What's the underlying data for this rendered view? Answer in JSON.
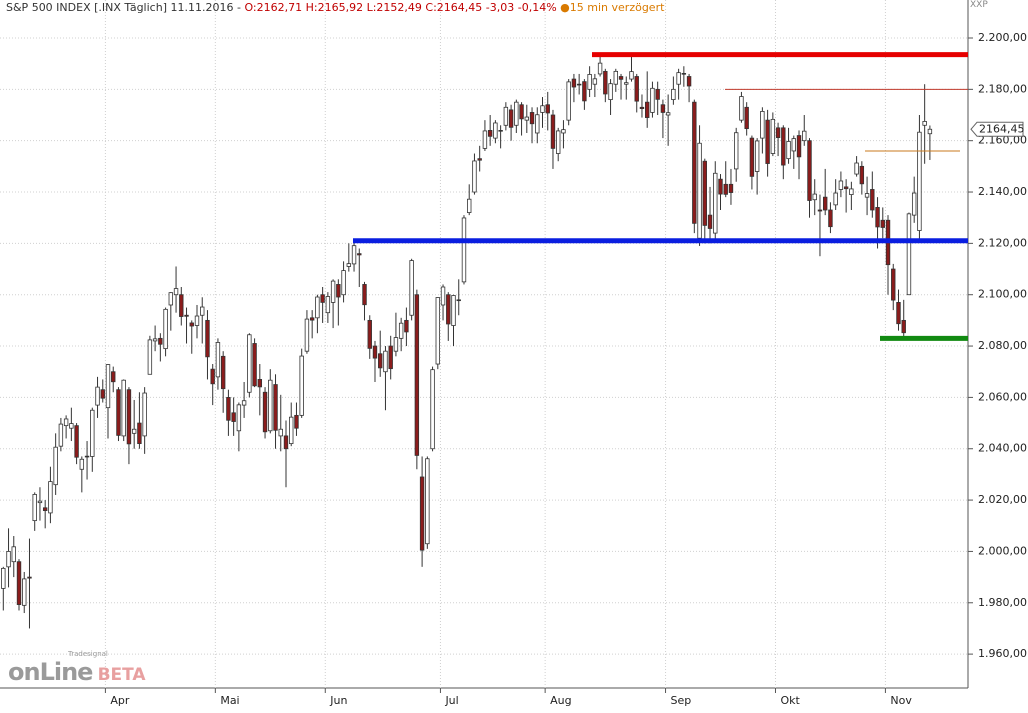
{
  "header": {
    "name": "S&P 500 INDEX [.INX Täglich] 11.11.2016 -",
    "open": "O:2162,71",
    "high": "H:2165,92",
    "low": "L:2152,49",
    "close": "C:2164,45",
    "change": "-3,03",
    "change_pct": "-0,14%",
    "delay": "15 min verzögert",
    "corner": "XXP"
  },
  "logo": {
    "brand": "onLine",
    "tag": "BETA",
    "small": "Tradesignal"
  },
  "chart_data": {
    "type": "candlestick",
    "categories": [
      null,
      "Apr",
      "Mai",
      "Jun",
      "Jul",
      "Aug",
      "Sep",
      "Okt",
      "Nov"
    ],
    "ohlc": [
      [
        [
          1985.6,
          1994,
          1977,
          1993.4
        ],
        [
          1994,
          2009,
          1986,
          2000
        ],
        [
          1996,
          2006,
          1990,
          2001.8
        ],
        [
          1996,
          1997,
          1977,
          1979.3
        ],
        [
          1979,
          1992,
          1976,
          1989.3
        ],
        [
          1990,
          2005,
          1970,
          1989.6
        ],
        [
          2012,
          2023,
          2008,
          2022.2
        ],
        [
          2019,
          2025,
          2012,
          2019.6
        ],
        [
          2017,
          2020,
          2009,
          2015.9
        ],
        [
          2015,
          2033,
          2011,
          2027.2
        ],
        [
          2026,
          2046,
          2022,
          2040.6
        ],
        [
          2041,
          2052,
          2039,
          2049.6
        ],
        [
          2049,
          2053,
          2044,
          2051.6
        ],
        [
          2048,
          2056,
          2043,
          2049.8
        ],
        [
          2049,
          2050,
          2034,
          2036.7
        ],
        [
          2032,
          2037,
          2023,
          2035.9
        ],
        [
          2037,
          2043,
          2028,
          2037.1
        ],
        [
          2037,
          2056,
          2031,
          2055
        ],
        [
          2057,
          2068,
          2052,
          2064
        ],
        [
          2063,
          2067,
          2058,
          2059.7
        ]
      ],
      [
        [
          2056,
          2073,
          2044,
          2072.8
        ],
        [
          2070,
          2072,
          2062,
          2066.1
        ],
        [
          2063,
          2064,
          2043,
          2045.2
        ],
        [
          2045,
          2067,
          2043,
          2066.7
        ],
        [
          2063,
          2064,
          2034,
          2041.9
        ],
        [
          2046,
          2059,
          2040,
          2047.6
        ],
        [
          2050,
          2062,
          2040,
          2042
        ],
        [
          2045,
          2064,
          2038,
          2061.7
        ],
        [
          2069,
          2084,
          2069,
          2082.4
        ],
        [
          2082,
          2088,
          2078,
          2082.8
        ],
        [
          2083,
          2085,
          2074,
          2080.7
        ],
        [
          2079,
          2095,
          2076,
          2094.3
        ],
        [
          2096,
          2101,
          2086,
          2100.8
        ],
        [
          2100,
          2111,
          2093,
          2102.4
        ],
        [
          2100,
          2103,
          2088,
          2091.5
        ],
        [
          2092,
          2095,
          2081,
          2091.6
        ],
        [
          2089,
          2090,
          2077,
          2087.8
        ],
        [
          2088,
          2096,
          2083,
          2091.7
        ],
        [
          2092,
          2099,
          2081,
          2095.2
        ],
        [
          2090,
          2094,
          2067,
          2075.8
        ],
        [
          2071,
          2073,
          2057,
          2065.3
        ]
      ],
      [
        [
          2068,
          2083,
          2063,
          2081.4
        ],
        [
          2076,
          2078,
          2054,
          2063.4
        ],
        [
          2060,
          2063,
          2045,
          2051.1
        ],
        [
          2054,
          2060,
          2045,
          2050.6
        ],
        [
          2047,
          2058,
          2039,
          2057.1
        ],
        [
          2057,
          2066,
          2052,
          2058.7
        ],
        [
          2062,
          2085,
          2060,
          2084.4
        ],
        [
          2081,
          2083,
          2064,
          2064.5
        ],
        [
          2067,
          2073,
          2053,
          2064.1
        ],
        [
          2062,
          2064,
          2044,
          2046.6
        ],
        [
          2047,
          2071,
          2046,
          2066.7
        ],
        [
          2065,
          2069,
          2040,
          2047.2
        ],
        [
          2045,
          2061,
          2039,
          2047.6
        ],
        [
          2045,
          2051,
          2025,
          2040
        ],
        [
          2042,
          2058,
          2041,
          2052.3
        ],
        [
          2053,
          2058,
          2045,
          2048
        ],
        [
          2053,
          2079,
          2052,
          2076.1
        ],
        [
          2078,
          2094,
          2077,
          2090.5
        ],
        [
          2091,
          2094,
          2083,
          2090.1
        ],
        [
          2091,
          2100,
          2085,
          2099.1
        ],
        [
          2100,
          2103,
          2089,
          2097
        ]
      ],
      [
        [
          2093,
          2101,
          2089,
          2099.3
        ],
        [
          2097,
          2106,
          2087,
          2105.3
        ],
        [
          2104,
          2106,
          2088,
          2099.1
        ],
        [
          2100,
          2113,
          2097,
          2109.4
        ],
        [
          2111,
          2120,
          2109,
          2112.1
        ],
        [
          2112,
          2121,
          2109,
          2119.1
        ],
        [
          2116,
          2118,
          2103,
          2115.5
        ],
        [
          2104,
          2105,
          2090,
          2096.1
        ],
        [
          2090,
          2092,
          2075,
          2079.1
        ],
        [
          2080,
          2082,
          2066,
          2075.3
        ],
        [
          2077,
          2086,
          2068,
          2071.5
        ],
        [
          2070,
          2080,
          2055,
          2078
        ],
        [
          2080,
          2084,
          2067,
          2071.2
        ],
        [
          2078,
          2093,
          2076,
          2083.3
        ],
        [
          2083,
          2091,
          2078,
          2088.9
        ],
        [
          2090,
          2095,
          2080,
          2085.5
        ],
        [
          2092,
          2114,
          2090,
          2113.3
        ],
        [
          2100,
          2102,
          2032,
          2037.4
        ],
        [
          2029,
          2037,
          1994,
          2000.5
        ],
        [
          2003,
          2037,
          2001,
          2036.1
        ],
        [
          2040,
          2072,
          2039,
          2070.8
        ],
        [
          2073,
          2099,
          2071,
          2098.9
        ]
      ],
      [
        [
          2096,
          2104,
          2090,
          2103
        ],
        [
          2100,
          2101,
          2082,
          2088.6
        ],
        [
          2088,
          2100,
          2080,
          2099.7
        ],
        [
          2098,
          2106,
          2092,
          2097.9
        ],
        [
          2105,
          2131,
          2104,
          2129.9
        ],
        [
          2132,
          2143,
          2131,
          2137.2
        ],
        [
          2140,
          2155,
          2139,
          2152.1
        ],
        [
          2153,
          2158,
          2148,
          2152.4
        ],
        [
          2157,
          2168,
          2156,
          2163.8
        ],
        [
          2164,
          2170,
          2158,
          2161.7
        ],
        [
          2161,
          2168,
          2159,
          2166.9
        ],
        [
          2164,
          2166,
          2157,
          2163.8
        ],
        [
          2166,
          2175,
          2164,
          2173
        ],
        [
          2172,
          2174,
          2160,
          2165.2
        ],
        [
          2166,
          2176,
          2163,
          2175
        ],
        [
          2174,
          2175,
          2162,
          2168.5
        ],
        [
          2168,
          2174,
          2163,
          2169.2
        ],
        [
          2171,
          2173,
          2159,
          2166.6
        ],
        [
          2163,
          2173,
          2159,
          2170.1
        ],
        [
          2171,
          2177,
          2165,
          2173.6
        ]
      ],
      [
        [
          2174,
          2179,
          2164,
          2170.8
        ],
        [
          2170,
          2172,
          2149,
          2157
        ],
        [
          2155,
          2165,
          2152,
          2163.8
        ],
        [
          2163,
          2168,
          2157,
          2164.3
        ],
        [
          2168,
          2184,
          2166,
          2182.9
        ],
        [
          2184,
          2186,
          2175,
          2180.9
        ],
        [
          2182,
          2186,
          2178,
          2181.7
        ],
        [
          2183,
          2184,
          2172,
          2175.5
        ],
        [
          2180,
          2189,
          2177,
          2185.8
        ],
        [
          2182,
          2186,
          2177,
          2184.1
        ],
        [
          2186,
          2193,
          2185,
          2190.2
        ],
        [
          2187,
          2188,
          2175,
          2178.2
        ],
        [
          2176,
          2184,
          2170,
          2182.2
        ],
        [
          2182,
          2188,
          2179,
          2187
        ],
        [
          2185,
          2186,
          2176,
          2183.9
        ],
        [
          2182,
          2185,
          2176,
          2182.6
        ],
        [
          2184,
          2193,
          2183,
          2186.9
        ],
        [
          2185,
          2186,
          2171,
          2175.4
        ],
        [
          2173,
          2178,
          2169,
          2172.5
        ],
        [
          2175,
          2187,
          2165,
          2169
        ],
        [
          2171,
          2183,
          2169,
          2180.4
        ],
        [
          2180,
          2183,
          2170,
          2176.1
        ],
        [
          2174,
          2176,
          2161,
          2171
        ]
      ],
      [
        [
          2170,
          2178,
          2158,
          2170.9
        ],
        [
          2176,
          2185,
          2174,
          2180
        ],
        [
          2182,
          2188,
          2176,
          2186.5
        ],
        [
          2186,
          2189,
          2181,
          2186.2
        ],
        [
          2185,
          2186,
          2175,
          2181.3
        ],
        [
          2175,
          2176,
          2124,
          2127.8
        ],
        [
          2122,
          2166,
          2119,
          2159
        ],
        [
          2152,
          2153,
          2120,
          2127
        ],
        [
          2131,
          2142,
          2120,
          2125.8
        ],
        [
          2124,
          2152,
          2121,
          2147.3
        ],
        [
          2145,
          2147,
          2133,
          2139.2
        ],
        [
          2143,
          2152,
          2138,
          2139.1
        ],
        [
          2143,
          2149,
          2135,
          2139.8
        ],
        [
          2149,
          2165,
          2144,
          2163.1
        ],
        [
          2168,
          2179,
          2167,
          2177.2
        ],
        [
          2173,
          2175,
          2162,
          2164.7
        ],
        [
          2161,
          2162,
          2141,
          2146.1
        ],
        [
          2148,
          2161,
          2139,
          2159.9
        ],
        [
          2161,
          2173,
          2155,
          2171.4
        ],
        [
          2168,
          2172,
          2146,
          2151.1
        ],
        [
          2155,
          2171,
          2154,
          2168.3
        ]
      ],
      [
        [
          2165,
          2167,
          2154,
          2161.2
        ],
        [
          2165,
          2166,
          2145,
          2150.5
        ],
        [
          2153,
          2165,
          2151,
          2159.7
        ],
        [
          2156,
          2162,
          2149,
          2160.8
        ],
        [
          2162,
          2164,
          2145,
          2153.7
        ],
        [
          2160,
          2170,
          2158,
          2163.7
        ],
        [
          2160,
          2161,
          2130,
          2136.7
        ],
        [
          2137,
          2145,
          2131,
          2139.2
        ],
        [
          2133,
          2139,
          2115,
          2132.6
        ],
        [
          2138,
          2149,
          2131,
          2133
        ],
        [
          2133,
          2136,
          2124,
          2126.5
        ],
        [
          2135,
          2145,
          2133,
          2139.6
        ],
        [
          2141,
          2148,
          2138,
          2144.3
        ],
        [
          2142,
          2145,
          2132,
          2141.3
        ],
        [
          2139,
          2144,
          2133,
          2141.2
        ],
        [
          2147,
          2154,
          2146,
          2151.3
        ],
        [
          2150,
          2152,
          2139,
          2143.2
        ],
        [
          2138,
          2146,
          2131,
          2139.4
        ],
        [
          2141,
          2148,
          2130,
          2133
        ],
        [
          2134,
          2138,
          2118,
          2126.4
        ],
        [
          2129,
          2134,
          2122,
          2126.2
        ]
      ],
      [
        [
          2129,
          2131,
          2100,
          2111.7
        ],
        [
          2110,
          2112,
          2094,
          2097.9
        ],
        [
          2097,
          2102,
          2086,
          2088.7
        ],
        [
          2090,
          2098,
          2083,
          2085.2
        ],
        [
          2100,
          2132,
          2100,
          2131.5
        ],
        [
          2131,
          2146,
          2128,
          2139.6
        ],
        [
          2125,
          2170,
          2121,
          2163.3
        ],
        [
          2166,
          2182,
          2151,
          2167.5
        ],
        [
          2162.71,
          2165.92,
          2152.49,
          2164.45
        ]
      ]
    ],
    "up_color": "#ffffff",
    "down_color": "#8b1c1c",
    "ylim": [
      1946.8,
      2214.8
    ],
    "yticks": [
      {
        "value": 1960,
        "label": "1.960,00"
      },
      {
        "value": 1980,
        "label": "1.980,00"
      },
      {
        "value": 2000,
        "label": "2.000,00"
      },
      {
        "value": 2020,
        "label": "2.020,00"
      },
      {
        "value": 2040,
        "label": "2.040,00"
      },
      {
        "value": 2060,
        "label": "2.060,00"
      },
      {
        "value": 2080,
        "label": "2.080,00"
      },
      {
        "value": 2100,
        "label": "2.100,00"
      },
      {
        "value": 2120,
        "label": "2.120,00"
      },
      {
        "value": 2140,
        "label": "2.140,00"
      },
      {
        "value": 2160,
        "label": "2.160,00"
      },
      {
        "value": 2180,
        "label": "2.180,00"
      },
      {
        "value": 2200,
        "label": "2.200,00"
      }
    ],
    "grid": true,
    "levels": [
      {
        "value": 2193.5,
        "color": "#e60000"
      },
      {
        "value": 2180,
        "color": "#c0392b"
      },
      {
        "value": 2121,
        "color": "#0a1ee0"
      },
      {
        "value": 2083,
        "color": "#118a11"
      },
      {
        "value": 2156,
        "color": "#c87a1e"
      }
    ],
    "last": {
      "value": 2164.45,
      "label": "2164,45"
    }
  }
}
